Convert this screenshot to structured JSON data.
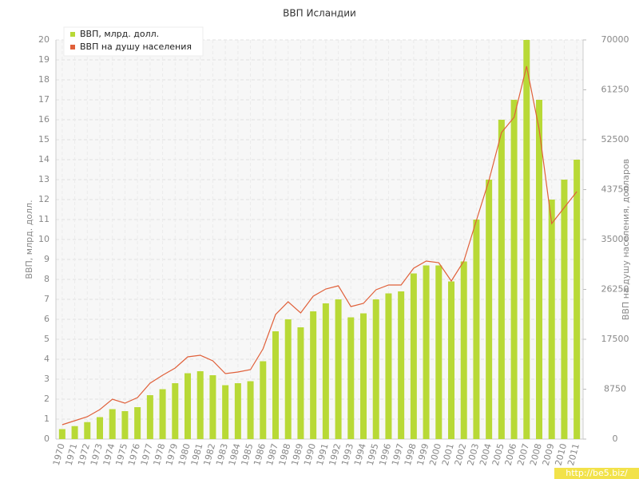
{
  "chart_data": {
    "type": "bar",
    "title": "ВВП Исландии",
    "categories": [
      "1970",
      "1971",
      "1972",
      "1973",
      "1974",
      "1975",
      "1976",
      "1977",
      "1978",
      "1979",
      "1980",
      "1981",
      "1982",
      "1983",
      "1984",
      "1985",
      "1986",
      "1987",
      "1988",
      "1989",
      "1990",
      "1991",
      "1992",
      "1993",
      "1994",
      "1995",
      "1996",
      "1997",
      "1998",
      "1999",
      "2000",
      "2001",
      "2002",
      "2003",
      "2004",
      "2005",
      "2006",
      "2007",
      "2008",
      "2009",
      "2010",
      "2011"
    ],
    "series": [
      {
        "name": "ВВП, млрд. долл.",
        "color": "#b8d936",
        "type": "bar",
        "values": [
          0.5,
          0.65,
          0.85,
          1.1,
          1.5,
          1.4,
          1.6,
          2.2,
          2.5,
          2.8,
          3.3,
          3.4,
          3.2,
          2.7,
          2.8,
          2.9,
          3.9,
          5.4,
          6.0,
          5.6,
          6.4,
          6.8,
          7.0,
          6.1,
          6.3,
          7.0,
          7.3,
          7.4,
          8.3,
          8.7,
          8.7,
          7.9,
          8.9,
          11.0,
          13.0,
          16.0,
          17.0,
          20.0,
          17.0,
          12.0,
          13.0,
          14.0
        ]
      },
      {
        "name": "ВВП на душу населения",
        "color": "#e0603a",
        "type": "line",
        "axis": "y2",
        "values": [
          2520,
          3220,
          3920,
          5180,
          7000,
          6300,
          7280,
          9800,
          11200,
          12460,
          14420,
          14700,
          13720,
          11480,
          11760,
          12180,
          15820,
          21840,
          24080,
          22120,
          25060,
          26320,
          26880,
          23240,
          23800,
          26180,
          27020,
          27020,
          29960,
          31220,
          30940,
          27720,
          31220,
          38360,
          45360,
          53760,
          56420,
          65380,
          54320,
          37800,
          40600,
          43400
        ]
      }
    ],
    "y_label": "ВВП, млрд. долл.",
    "y2_label": "ВВП на душу населения, долларов",
    "ylim": [
      0,
      20
    ],
    "yticks": [
      0,
      1,
      2,
      3,
      4,
      5,
      6,
      7,
      8,
      9,
      10,
      11,
      12,
      13,
      14,
      15,
      16,
      17,
      18,
      19,
      20
    ],
    "y2lim": [
      0,
      70000
    ],
    "y2ticks": [
      0,
      8750,
      17500,
      26250,
      35000,
      43750,
      52500,
      61250,
      70000
    ],
    "grid": true,
    "legend": "top-left",
    "watermark": "http://be5.biz/"
  }
}
